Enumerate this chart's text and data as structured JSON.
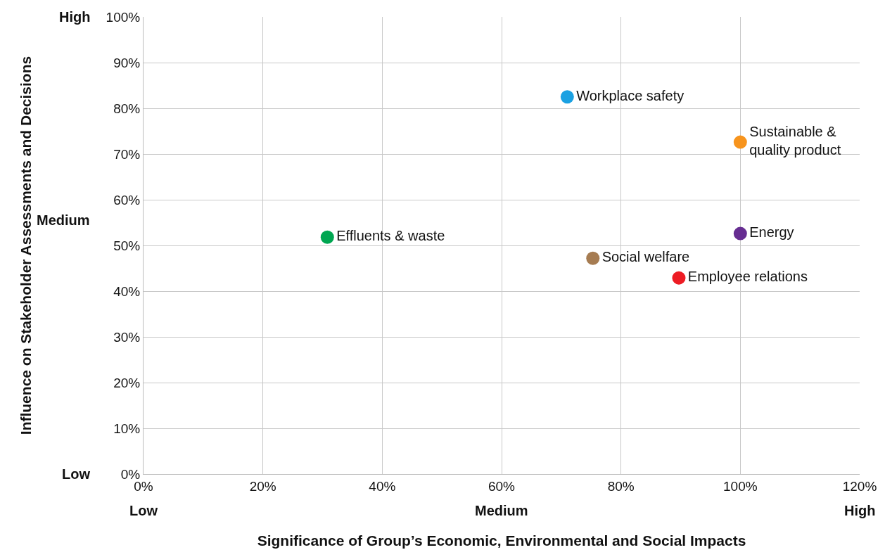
{
  "chart_data": {
    "type": "scatter",
    "xlabel": "Significance of Group’s Economic, Environmental and Social Impacts",
    "ylabel": "Influence on Stakeholder Assessments and Decisions",
    "series": [
      {
        "name": "Workplace safety",
        "color": "#1ba1e2",
        "x": [
          71
        ],
        "values": [
          82.5
        ]
      },
      {
        "name": "Sustainable & quality product",
        "color": "#f7941d",
        "x": [
          100
        ],
        "values": [
          72.6
        ]
      },
      {
        "name": "Energy",
        "color": "#662d91",
        "x": [
          100
        ],
        "values": [
          52.6
        ]
      },
      {
        "name": "Effluents & waste",
        "color": "#00a651",
        "x": [
          30.8
        ],
        "values": [
          51.8
        ]
      },
      {
        "name": "Social welfare",
        "color": "#a67c52",
        "x": [
          75.3
        ],
        "values": [
          47.2
        ]
      },
      {
        "name": "Employee relations",
        "color": "#ed1c24",
        "x": [
          89.7
        ],
        "values": [
          42.9
        ]
      }
    ],
    "annotations": [
      "High",
      "Medium",
      "Low",
      "Low",
      "Medium",
      "High"
    ],
    "xlim": [
      0,
      120
    ],
    "xticks": [
      {
        "value": 0,
        "label": "0%"
      },
      {
        "value": 20,
        "label": "20%"
      },
      {
        "value": 40,
        "label": "40%"
      },
      {
        "value": 60,
        "label": "60%"
      },
      {
        "value": 80,
        "label": "80%"
      },
      {
        "value": 100,
        "label": "100%"
      },
      {
        "value": 120,
        "label": "120%"
      }
    ],
    "ylim": [
      0,
      100
    ],
    "yticks": [
      {
        "value": 0,
        "label": "0%"
      },
      {
        "value": 10,
        "label": "10%"
      },
      {
        "value": 20,
        "label": "20%"
      },
      {
        "value": 30,
        "label": "30%"
      },
      {
        "value": 40,
        "label": "40%"
      },
      {
        "value": 50,
        "label": "50%"
      },
      {
        "value": 60,
        "label": "60%"
      },
      {
        "value": 70,
        "label": "70%"
      },
      {
        "value": 80,
        "label": "80%"
      },
      {
        "value": 90,
        "label": "90%"
      },
      {
        "value": 100,
        "label": "100%"
      }
    ],
    "grid": true,
    "marker": "circle"
  }
}
